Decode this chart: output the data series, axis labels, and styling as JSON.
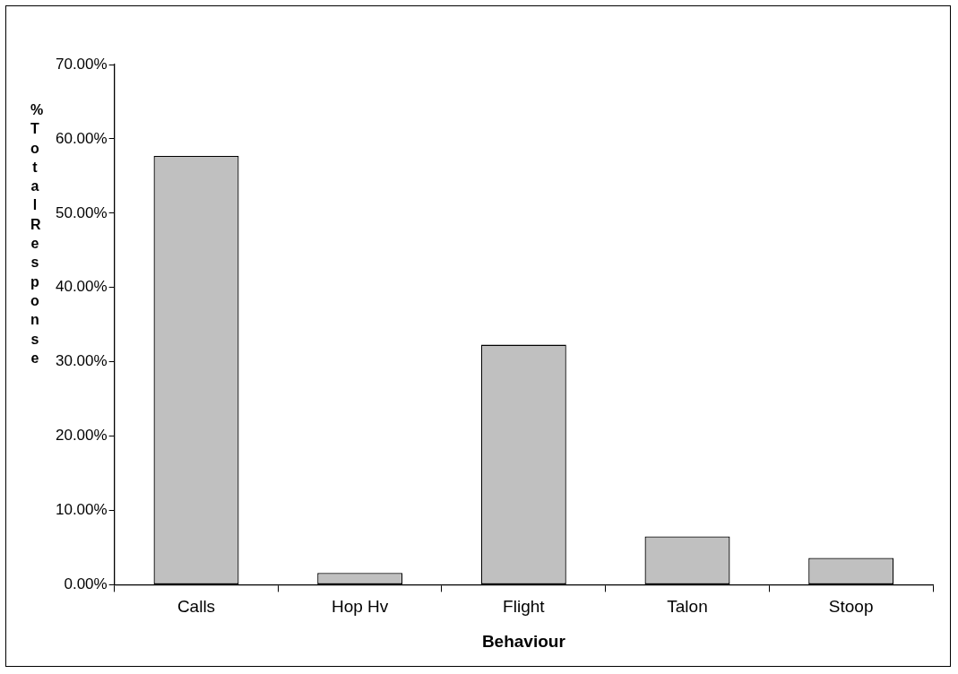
{
  "chart_data": {
    "type": "bar",
    "xlabel": "Behaviour",
    "ylabel": "% Total Response",
    "categories": [
      "Calls",
      "Hop Hv",
      "Flight",
      "Talon",
      "Stoop"
    ],
    "values": [
      57.7,
      1.6,
      32.3,
      6.5,
      3.6
    ],
    "color": "#c0c0c0",
    "ylim": [
      0,
      70
    ],
    "yticks": [
      {
        "value": 0,
        "label": "0.00%"
      },
      {
        "value": 10,
        "label": "10.00%"
      },
      {
        "value": 20,
        "label": "20.00%"
      },
      {
        "value": 30,
        "label": "30.00%"
      },
      {
        "value": 40,
        "label": "40.00%"
      },
      {
        "value": 50,
        "label": "50.00%"
      },
      {
        "value": 60,
        "label": "60.00%"
      },
      {
        "value": 70,
        "label": "70.00%"
      }
    ],
    "grid": false,
    "legend": false
  }
}
